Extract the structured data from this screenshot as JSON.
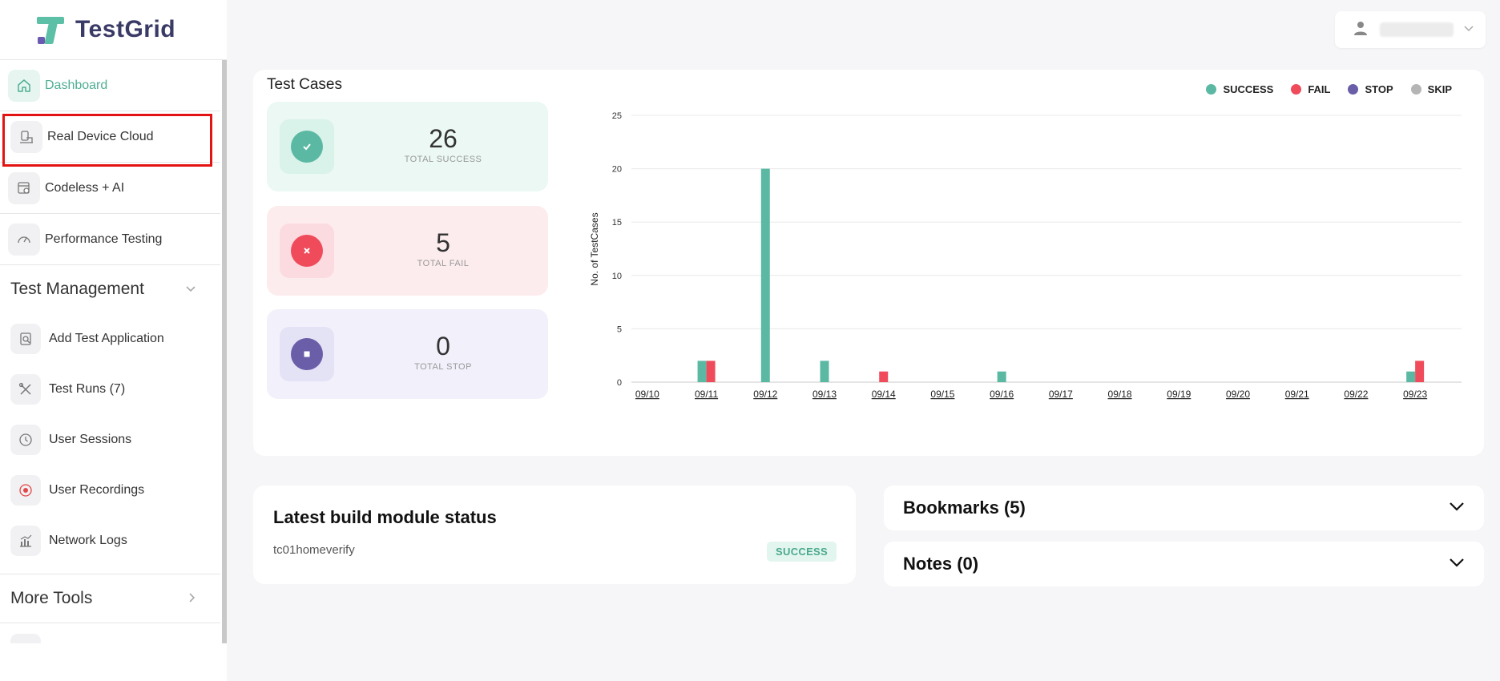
{
  "app": {
    "name": "TestGrid"
  },
  "sidebar": {
    "top_items": [
      {
        "label": "Dashboard",
        "icon": "home-icon"
      },
      {
        "label": "Real Device Cloud",
        "icon": "device-cloud-icon"
      },
      {
        "label": "Codeless + AI",
        "icon": "codeless-icon"
      },
      {
        "label": "Performance Testing",
        "icon": "speedometer-icon"
      }
    ],
    "test_management": {
      "title": "Test Management",
      "items": [
        {
          "label": "Add Test Application",
          "icon": "add-application-icon"
        },
        {
          "label": "Test Runs (7)",
          "icon": "tools-icon"
        },
        {
          "label": "User Sessions",
          "icon": "clock-icon"
        },
        {
          "label": "User Recordings",
          "icon": "record-icon"
        },
        {
          "label": "Network Logs",
          "icon": "network-chart-icon"
        }
      ]
    },
    "more_tools": {
      "title": "More Tools"
    }
  },
  "test_cases": {
    "title": "Test Cases",
    "stats": [
      {
        "value": "26",
        "label": "TOTAL SUCCESS"
      },
      {
        "value": "5",
        "label": "TOTAL FAIL"
      },
      {
        "value": "0",
        "label": "TOTAL STOP"
      }
    ]
  },
  "chart_data": {
    "type": "bar",
    "ylabel": "No. of TestCases",
    "ylim": [
      0,
      25
    ],
    "yticks": [
      0,
      5,
      10,
      15,
      20,
      25
    ],
    "categories": [
      "09/10",
      "09/11",
      "09/12",
      "09/13",
      "09/14",
      "09/15",
      "09/16",
      "09/17",
      "09/18",
      "09/19",
      "09/20",
      "09/21",
      "09/22",
      "09/23"
    ],
    "series": [
      {
        "name": "SUCCESS",
        "color": "#5bb9a3",
        "values": [
          0,
          2,
          20,
          2,
          0,
          0,
          1,
          0,
          0,
          0,
          0,
          0,
          0,
          1
        ]
      },
      {
        "name": "FAIL",
        "color": "#ef4b5b",
        "values": [
          0,
          2,
          0,
          0,
          1,
          0,
          0,
          0,
          0,
          0,
          0,
          0,
          0,
          2
        ]
      },
      {
        "name": "STOP",
        "color": "#6b5ea8",
        "values": [
          0,
          0,
          0,
          0,
          0,
          0,
          0,
          0,
          0,
          0,
          0,
          0,
          0,
          0
        ]
      },
      {
        "name": "SKIP",
        "color": "#b5b5b5",
        "values": [
          0,
          0,
          0,
          0,
          0,
          0,
          0,
          0,
          0,
          0,
          0,
          0,
          0,
          0
        ]
      }
    ],
    "legend": "top-right",
    "grid": true
  },
  "build": {
    "title": "Latest build module status",
    "module": "tc01homeverify",
    "status": "SUCCESS"
  },
  "bookmarks": {
    "title": "Bookmarks (5)"
  },
  "notes": {
    "title": "Notes (0)"
  }
}
